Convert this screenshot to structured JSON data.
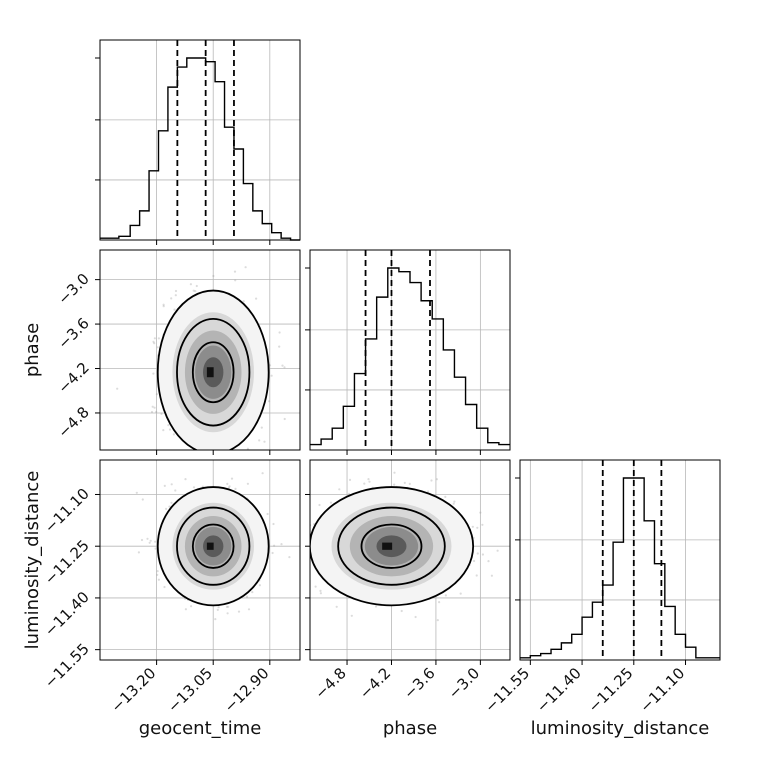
{
  "chart_data": {
    "type": "corner",
    "parameters": [
      "geocent_time",
      "phase",
      "luminosity_distance"
    ],
    "axis_labels": {
      "x": [
        "geocent_time",
        "phase",
        "luminosity_distance"
      ],
      "y": [
        "phase",
        "luminosity_distance"
      ]
    },
    "ticks": {
      "geocent_time": {
        "values": [
          -13.2,
          -13.05,
          -12.9
        ],
        "labels": [
          "−13.20",
          "−13.05",
          "−12.90"
        ],
        "range": [
          -13.35,
          -12.82
        ]
      },
      "phase": {
        "values": [
          -4.8,
          -4.2,
          -3.6,
          -3.0
        ],
        "labels": [
          "−4.8",
          "−4.2",
          "−3.6",
          "−3.0"
        ],
        "range": [
          -5.3,
          -2.6
        ]
      },
      "luminosity_distance": {
        "values": [
          -11.55,
          -11.4,
          -11.25,
          -11.1
        ],
        "labels": [
          "−11.55",
          "−11.40",
          "−11.25",
          "−11.10"
        ],
        "range": [
          -11.58,
          -11.0
        ]
      }
    },
    "histograms": [
      {
        "parameter": "geocent_time",
        "bins": [
          -13.35,
          -13.3,
          -13.27,
          -13.245,
          -13.22,
          -13.195,
          -13.17,
          -13.145,
          -13.12,
          -13.095,
          -13.07,
          -13.045,
          -13.02,
          -12.995,
          -12.97,
          -12.945,
          -12.92,
          -12.895,
          -12.87,
          -12.845,
          -12.82
        ],
        "counts": [
          1,
          2,
          8,
          16,
          38,
          60,
          84,
          95,
          100,
          100,
          98,
          87,
          62,
          50,
          31,
          16,
          9,
          4,
          1,
          0
        ],
        "quantiles": [
          -13.145,
          -13.07,
          -12.995
        ]
      },
      {
        "parameter": "phase",
        "bins": [
          -5.3,
          -5.15,
          -5.0,
          -4.85,
          -4.7,
          -4.55,
          -4.4,
          -4.25,
          -4.1,
          -3.95,
          -3.8,
          -3.65,
          -3.5,
          -3.35,
          -3.2,
          -3.05,
          -2.9,
          -2.75,
          -2.6
        ],
        "counts": [
          3,
          6,
          12,
          24,
          42,
          61,
          84,
          100,
          98,
          92,
          82,
          72,
          55,
          40,
          25,
          12,
          4,
          3
        ],
        "quantiles": [
          -4.55,
          -4.2,
          -3.68
        ]
      },
      {
        "parameter": "luminosity_distance",
        "bins": [
          -11.58,
          -11.55,
          -11.52,
          -11.49,
          -11.46,
          -11.43,
          -11.4,
          -11.37,
          -11.34,
          -11.31,
          -11.28,
          -11.25,
          -11.22,
          -11.19,
          -11.16,
          -11.13,
          -11.1,
          -11.07,
          -11.04,
          -11.0
        ],
        "counts": [
          1,
          2,
          3,
          5,
          8,
          12,
          20,
          27,
          35,
          55,
          85,
          85,
          65,
          45,
          25,
          12,
          6,
          1,
          1
        ],
        "quantiles": [
          -11.34,
          -11.25,
          -11.17
        ]
      }
    ],
    "joint_plots": [
      {
        "x": "geocent_time",
        "y": "phase",
        "center": [
          -13.05,
          -4.25
        ],
        "spread": [
          0.06,
          0.45
        ],
        "levels": [
          0.4,
          0.7,
          0.9
        ]
      },
      {
        "x": "geocent_time",
        "y": "luminosity_distance",
        "center": [
          -13.05,
          -11.25
        ],
        "spread": [
          0.06,
          0.07
        ],
        "levels": [
          0.4,
          0.7,
          0.9
        ]
      },
      {
        "x": "phase",
        "y": "luminosity_distance",
        "center": [
          -4.2,
          -11.25
        ],
        "spread": [
          0.45,
          0.07
        ],
        "levels": [
          0.4,
          0.7,
          0.9
        ]
      }
    ],
    "grid": true
  }
}
